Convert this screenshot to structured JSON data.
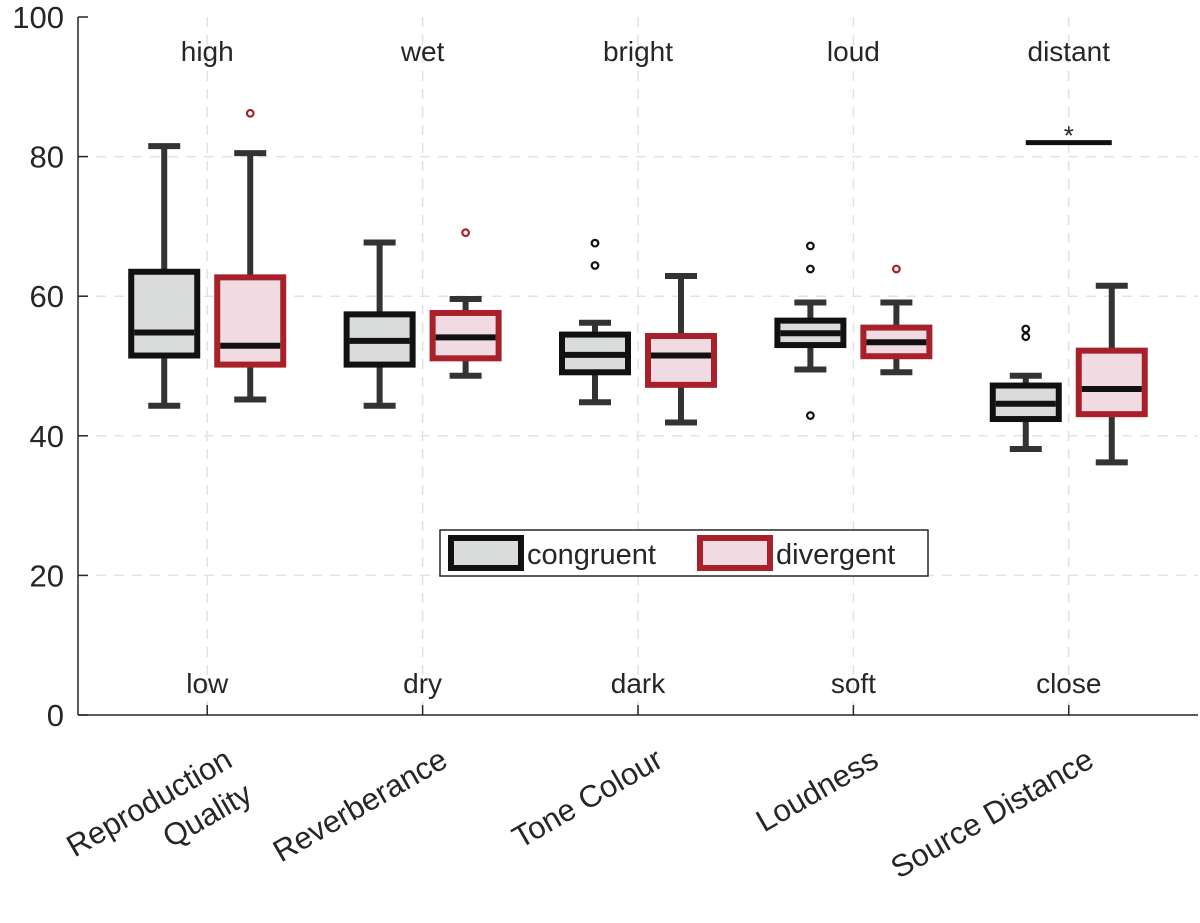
{
  "chart_data": {
    "type": "boxplot",
    "title": "",
    "xlabel": "",
    "ylabel": "",
    "ylim": [
      0,
      100
    ],
    "yticks": [
      0,
      20,
      40,
      60,
      80,
      100
    ],
    "grid": true,
    "legend_position": "center",
    "categories": [
      "Reproduction Quality",
      "Reverberance",
      "Tone Colour",
      "Loudness",
      "Source Distance"
    ],
    "category_lines": [
      [
        "Reproduction",
        "Quality"
      ],
      [
        "Reverberance"
      ],
      [
        "Tone Colour"
      ],
      [
        "Loudness"
      ],
      [
        "Source Distance"
      ]
    ],
    "top_anchors": [
      "high",
      "wet",
      "bright",
      "loud",
      "distant"
    ],
    "bottom_anchors": [
      "low",
      "dry",
      "dark",
      "soft",
      "close"
    ],
    "series": [
      {
        "name": "congruent",
        "edge_color": "#111111",
        "fill_color": "#d9dcdb",
        "outlier_color": "#111111",
        "boxes": [
          {
            "whisker_low": 44.3,
            "q1": 51.5,
            "median": 54.8,
            "q3": 63.5,
            "whisker_high": 81.5,
            "outliers": []
          },
          {
            "whisker_low": 44.3,
            "q1": 50.2,
            "median": 53.6,
            "q3": 57.4,
            "whisker_high": 67.7,
            "outliers": []
          },
          {
            "whisker_low": 44.8,
            "q1": 49.1,
            "median": 51.6,
            "q3": 54.5,
            "whisker_high": 56.2,
            "outliers": [
              64.4,
              67.6
            ]
          },
          {
            "whisker_low": 49.5,
            "q1": 53.0,
            "median": 54.7,
            "q3": 56.5,
            "whisker_high": 59.1,
            "outliers": [
              42.9,
              63.9,
              67.2
            ]
          },
          {
            "whisker_low": 38.1,
            "q1": 42.4,
            "median": 44.6,
            "q3": 47.2,
            "whisker_high": 48.6,
            "outliers": [
              54.2,
              55.3
            ]
          }
        ]
      },
      {
        "name": "divergent",
        "edge_color": "#a8202a",
        "fill_color": "#efdbe1",
        "outlier_color": "#a8202a",
        "boxes": [
          {
            "whisker_low": 45.2,
            "q1": 50.2,
            "median": 52.9,
            "q3": 62.7,
            "whisker_high": 80.5,
            "outliers": [
              86.2
            ]
          },
          {
            "whisker_low": 48.6,
            "q1": 51.1,
            "median": 54.1,
            "q3": 57.6,
            "whisker_high": 59.6,
            "outliers": [
              69.1
            ]
          },
          {
            "whisker_low": 41.9,
            "q1": 47.3,
            "median": 51.5,
            "q3": 54.3,
            "whisker_high": 62.9,
            "outliers": []
          },
          {
            "whisker_low": 49.1,
            "q1": 51.4,
            "median": 53.4,
            "q3": 55.5,
            "whisker_high": 59.1,
            "outliers": [
              63.9
            ]
          },
          {
            "whisker_low": 36.2,
            "q1": 43.1,
            "median": 46.7,
            "q3": 52.2,
            "whisker_high": 61.5,
            "outliers": []
          }
        ]
      }
    ],
    "annotations": [
      {
        "category": "Source Distance",
        "type": "significance",
        "label": "*",
        "y": 82.0
      }
    ]
  }
}
